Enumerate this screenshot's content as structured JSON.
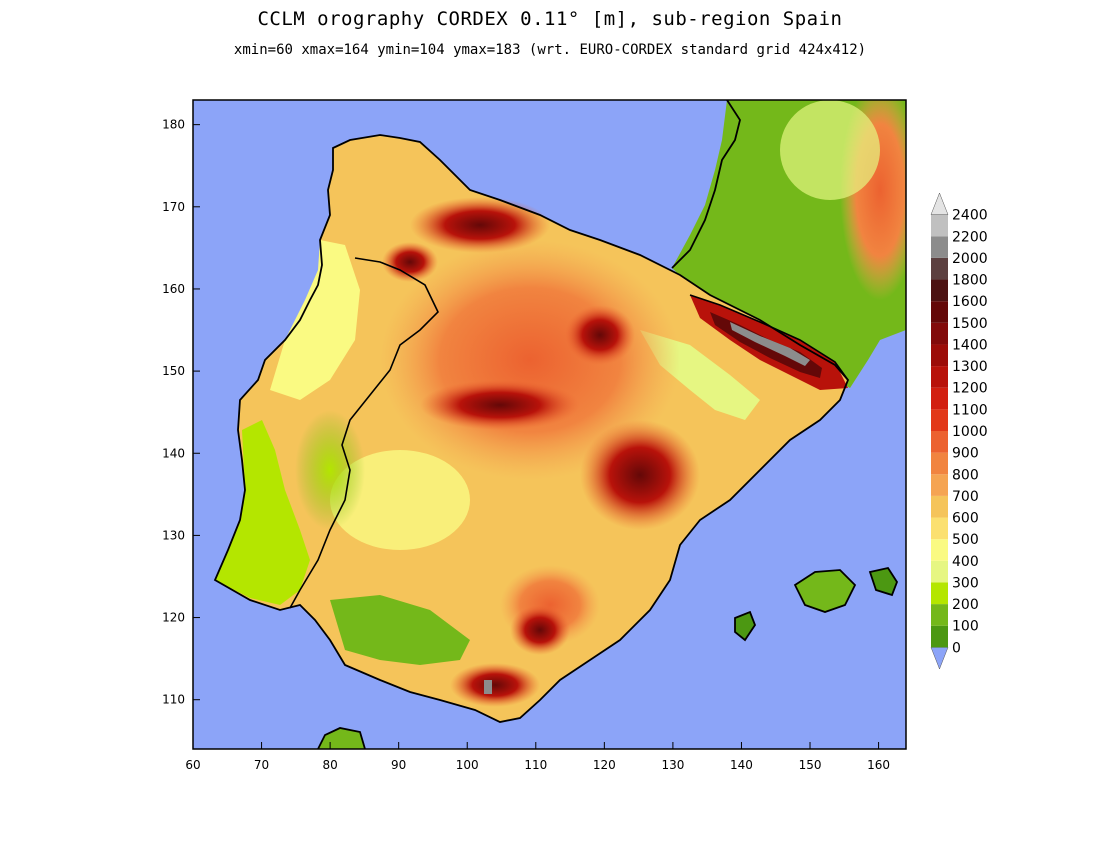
{
  "title": "CCLM orography CORDEX 0.11° [m], sub-region Spain",
  "subtitle": "xmin=60 xmax=164 ymin=104 ymax=183 (wrt. EURO-CORDEX standard grid 424x412)",
  "x_axis": {
    "min": 60,
    "max": 164,
    "ticks": [
      "60",
      "70",
      "80",
      "90",
      "100",
      "110",
      "120",
      "130",
      "140",
      "150",
      "160"
    ]
  },
  "y_axis": {
    "min": 104,
    "max": 183,
    "ticks": [
      "110",
      "120",
      "130",
      "140",
      "150",
      "160",
      "170",
      "180"
    ]
  },
  "colorbar": {
    "labels": [
      "0",
      "100",
      "200",
      "300",
      "400",
      "500",
      "600",
      "700",
      "800",
      "900",
      "1000",
      "1100",
      "1200",
      "1300",
      "1400",
      "1500",
      "1600",
      "1800",
      "2000",
      "2200",
      "2400"
    ],
    "colors": [
      "#8ca4f8",
      "#4c9812",
      "#74b81a",
      "#b4e600",
      "#e6f682",
      "#fafa82",
      "#fbe070",
      "#f5c45a",
      "#f5a452",
      "#f18440",
      "#ec6230",
      "#e23818",
      "#d21f10",
      "#b8120a",
      "#9c0c08",
      "#820a0a",
      "#640808",
      "#4c1212",
      "#5c4040",
      "#8c8c8c",
      "#c0c0c0",
      "#e4e4e4"
    ]
  },
  "colors": {
    "sea": "#8ca4f8",
    "frame": "#000000",
    "coast": "#000000"
  }
}
